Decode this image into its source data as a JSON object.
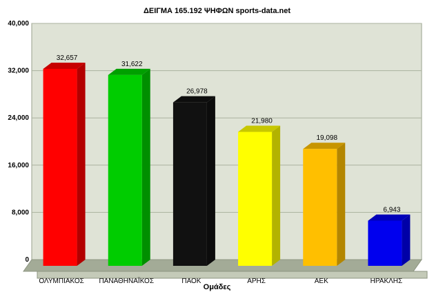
{
  "chart_data": {
    "type": "bar",
    "title": "ΔΕΙΓΜΑ 165.192 ΨΗΦΩΝ  sports-data.net",
    "xlabel": "Ομάδες",
    "ylabel": "",
    "ylim": [
      0,
      40000
    ],
    "yticks": [
      "0",
      "8,000",
      "16,000",
      "24,000",
      "32,000",
      "40,000"
    ],
    "ytick_values": [
      0,
      8000,
      16000,
      24000,
      32000,
      40000
    ],
    "grid": true,
    "bar_style": "3d",
    "categories": [
      "ΟΛΥΜΠΙΑΚΟΣ",
      "ΠΑΝΑΘΗΝΑΪΚΟΣ",
      "ΠΑΟΚ",
      "ΑΡΗΣ",
      "ΑΕΚ",
      "ΗΡΑΚΛΗΣ"
    ],
    "values": [
      32657,
      31622,
      26978,
      21980,
      19098,
      6943
    ],
    "value_labels": [
      "32,657",
      "31,622",
      "26,978",
      "21,980",
      "19,098",
      "6,943"
    ],
    "colors": [
      "#ff0000",
      "#00cc00",
      "#111111",
      "#ffff00",
      "#ffbf00",
      "#0000ee"
    ],
    "plot_background": "#dfe3d6",
    "floor_color": "#a3ab97"
  }
}
